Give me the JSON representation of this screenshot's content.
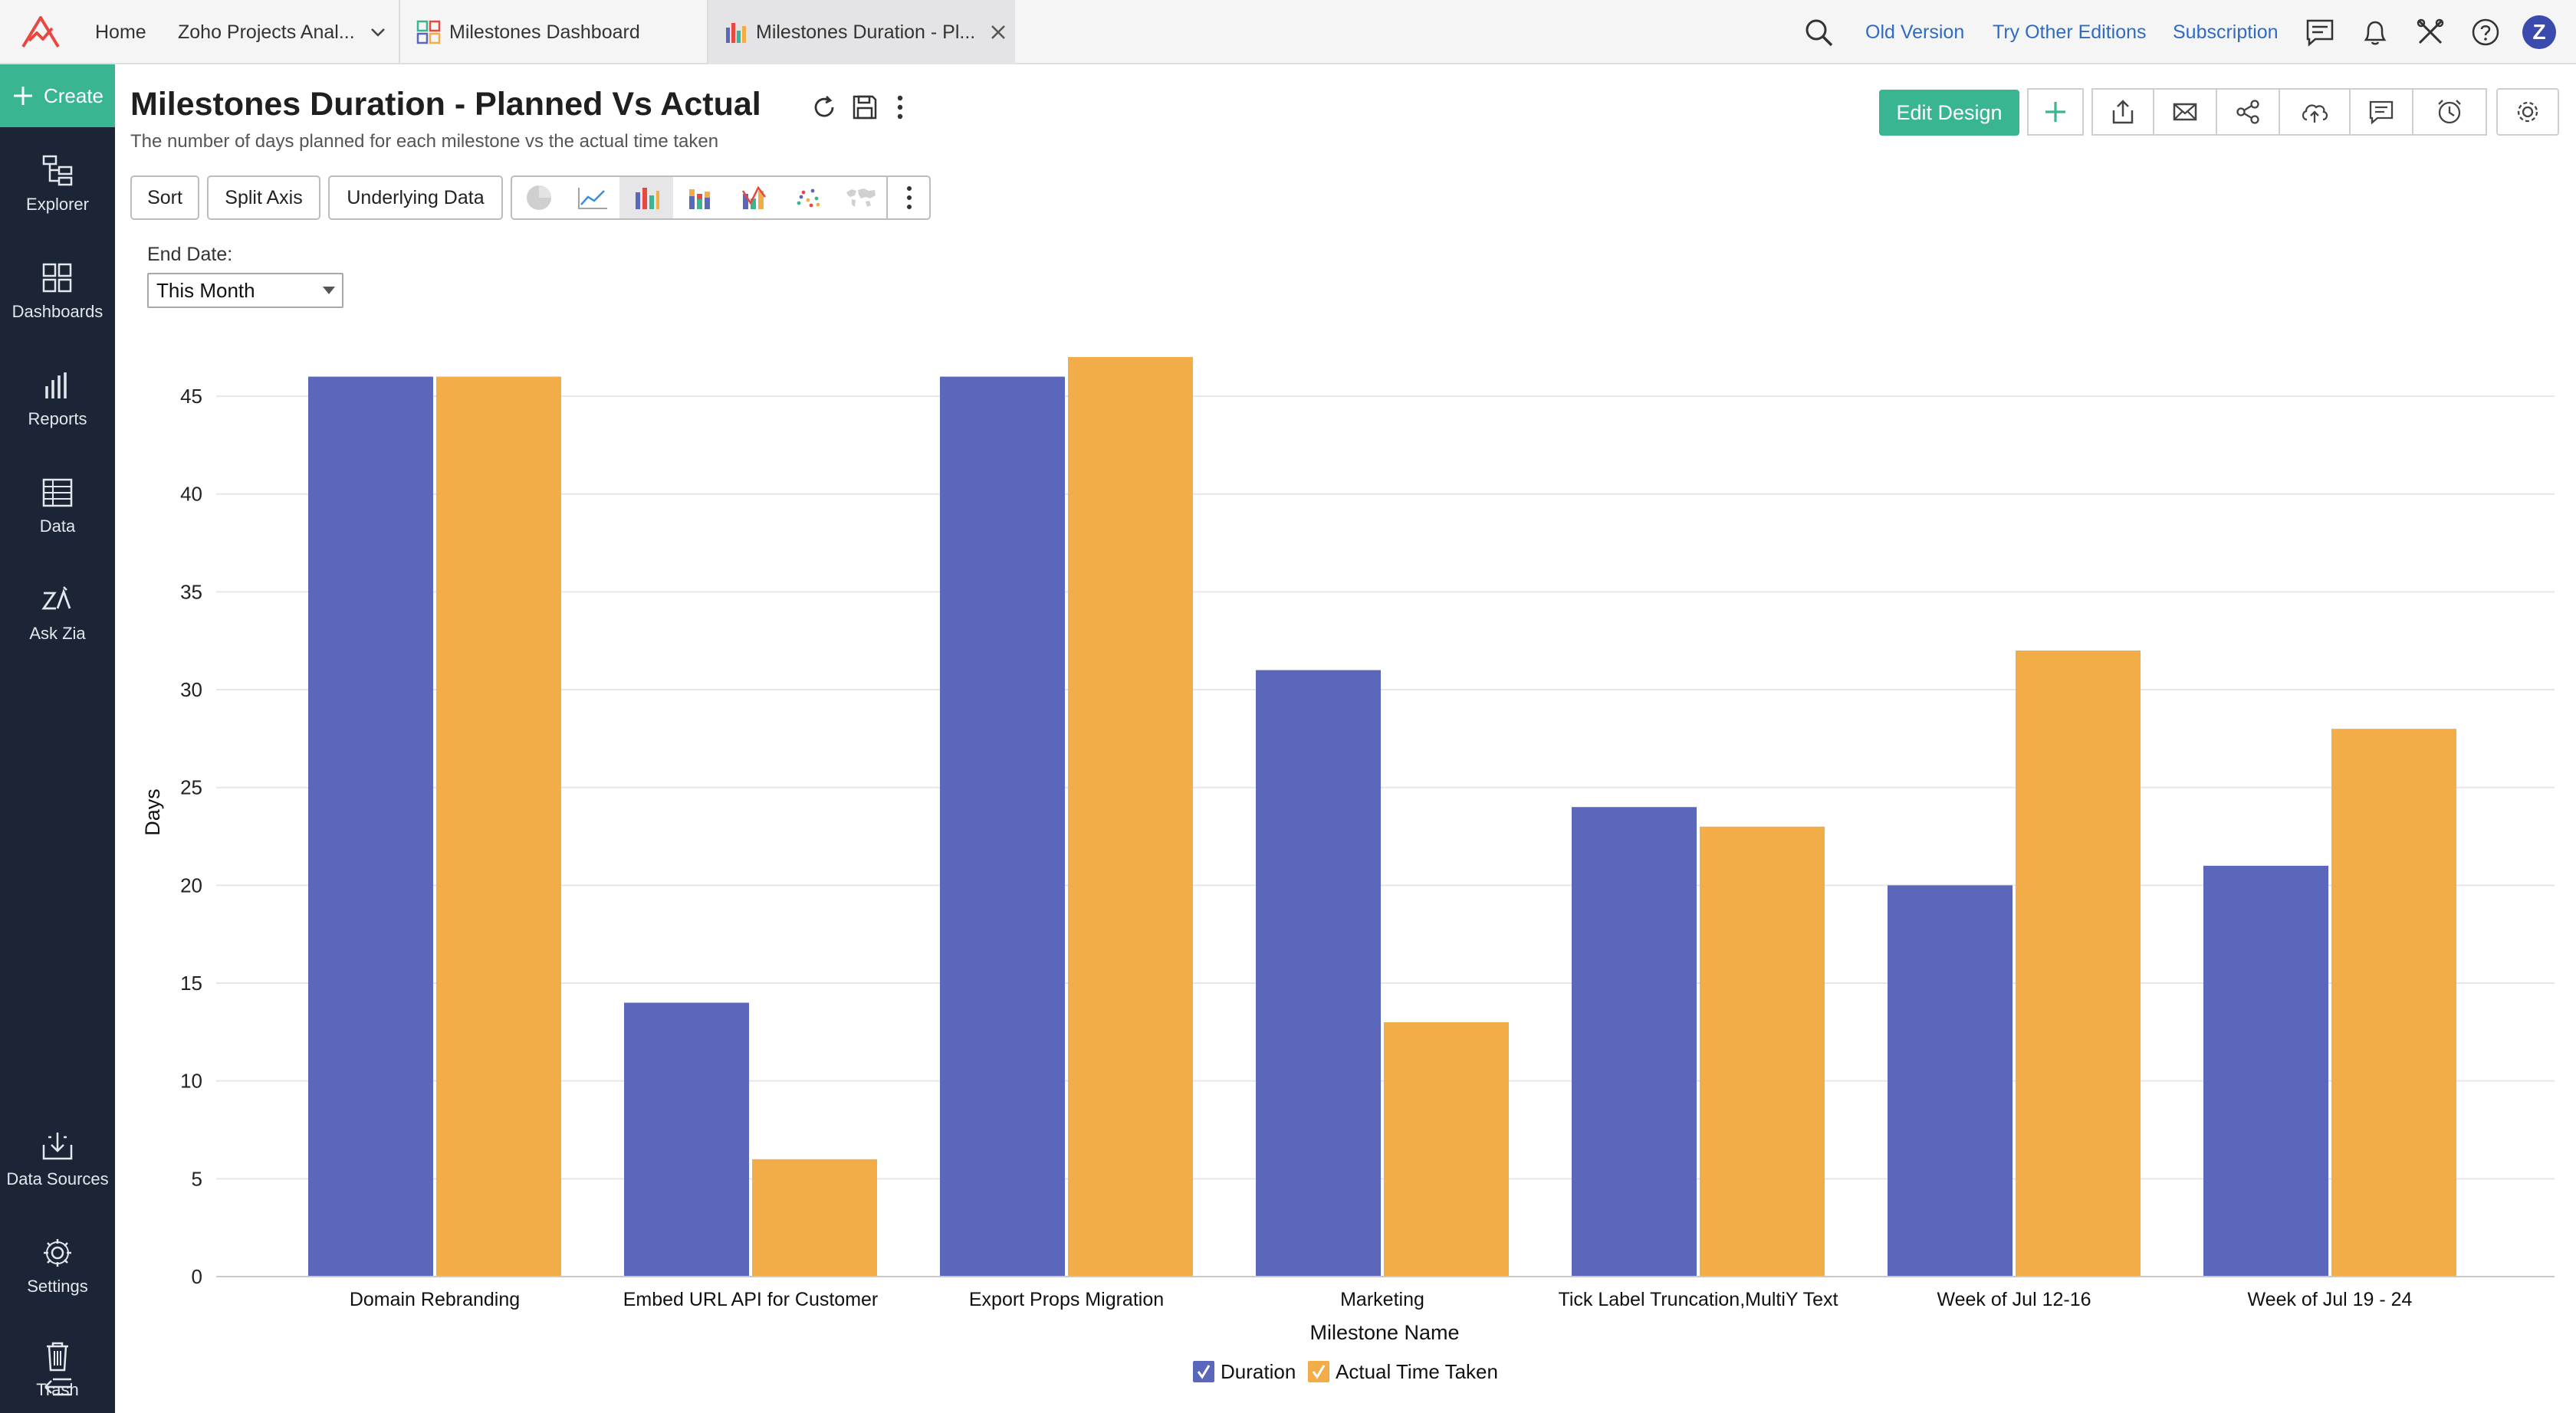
{
  "topbar": {
    "home_label": "Home",
    "workspace_label": "Zoho Projects Anal...",
    "tabs": [
      {
        "label": "Milestones Dashboard"
      },
      {
        "label": "Milestones Duration - Pl..."
      }
    ],
    "links": {
      "old_version": "Old Version",
      "other_editions": "Try Other Editions",
      "subscription": "Subscription"
    },
    "avatar_letter": "Z"
  },
  "sidebar": {
    "create_label": "Create",
    "items": [
      {
        "label": "Explorer",
        "icon": "explorer-icon"
      },
      {
        "label": "Dashboards",
        "icon": "dashboards-icon"
      },
      {
        "label": "Reports",
        "icon": "reports-icon"
      },
      {
        "label": "Data",
        "icon": "data-icon"
      },
      {
        "label": "Ask Zia",
        "icon": "zia-icon"
      },
      {
        "label": "Data Sources",
        "icon": "data-sources-icon"
      },
      {
        "label": "Settings",
        "icon": "settings-icon"
      },
      {
        "label": "Trash",
        "icon": "trash-icon"
      }
    ]
  },
  "header": {
    "title": "Milestones Duration - Planned Vs Actual",
    "subtitle": "The number of days planned for each milestone vs the actual time taken",
    "edit_design_label": "Edit Design"
  },
  "toolbar": {
    "sort_label": "Sort",
    "split_axis_label": "Split Axis",
    "underlying_data_label": "Underlying Data",
    "chart_types": [
      "pie",
      "line",
      "bar",
      "stacked-bar",
      "combo",
      "scatter",
      "map"
    ],
    "selected_chart_type": "bar"
  },
  "filter": {
    "label": "End Date:",
    "value": "This Month"
  },
  "colors": {
    "accent": "#3ab592",
    "sidebar_bg": "#1c2535",
    "duration": "#5b67ba",
    "actual": "#f2ad48",
    "link": "#2f6bc3"
  },
  "chart_data": {
    "type": "bar",
    "title": "",
    "xlabel": "Milestone Name",
    "ylabel": "Days",
    "ylim": [
      0,
      47
    ],
    "yticks": [
      0,
      5,
      10,
      15,
      20,
      25,
      30,
      35,
      40,
      45
    ],
    "grid": true,
    "legend_position": "bottom",
    "categories": [
      "Domain Rebranding",
      "Embed URL API for Customer",
      "Export Props Migration",
      "Marketing",
      "Tick Label Truncation,MultiY Text",
      "Week of Jul 12-16",
      "Week of Jul 19 - 24"
    ],
    "series": [
      {
        "name": "Duration",
        "color": "#5b67ba",
        "values": [
          46,
          14,
          46,
          31,
          24,
          20,
          21
        ]
      },
      {
        "name": "Actual Time Taken",
        "color": "#f2ad48",
        "values": [
          46,
          6,
          47,
          13,
          23,
          32,
          28
        ]
      }
    ]
  }
}
